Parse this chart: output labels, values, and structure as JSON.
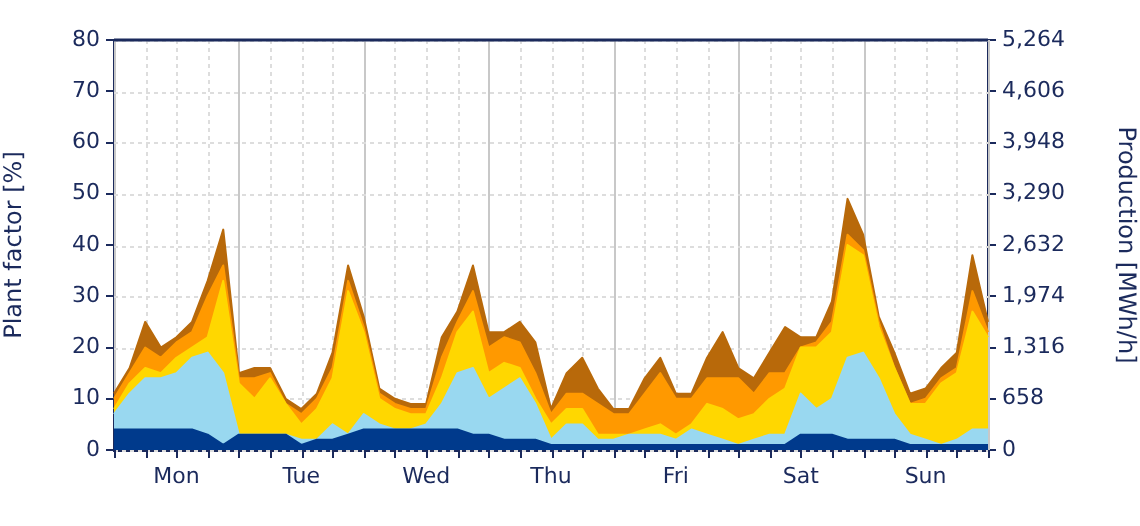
{
  "chart_data": {
    "type": "area",
    "stacked": true,
    "ylabel": "Plant factor [%]",
    "y2label": "Production [MWh/h]",
    "categories": [
      null,
      null,
      null,
      null,
      "Mon",
      null,
      null,
      null,
      null,
      null,
      null,
      null,
      "Tue",
      null,
      null,
      null,
      null,
      null,
      null,
      null,
      "Wed",
      null,
      null,
      null,
      null,
      null,
      null,
      null,
      "Thu",
      null,
      null,
      null,
      null,
      null,
      null,
      null,
      "Fri",
      null,
      null,
      null,
      null,
      null,
      null,
      null,
      "Sat",
      null,
      null,
      null,
      null,
      null,
      null,
      null,
      "Sun",
      null,
      null,
      null,
      null
    ],
    "series": [
      {
        "color": "#003a8c",
        "values": [
          4,
          4,
          4,
          4,
          4,
          4,
          3,
          1,
          3,
          3,
          3,
          3,
          1,
          2,
          2,
          3,
          4,
          4,
          4,
          4,
          4,
          4,
          4,
          3,
          3,
          2,
          2,
          2,
          1,
          1,
          1,
          1,
          1,
          1,
          1,
          1,
          1,
          1,
          1,
          1,
          1,
          1,
          1,
          1,
          3,
          3,
          3,
          2,
          2,
          2,
          2,
          1,
          1,
          1,
          1,
          1,
          1
        ]
      },
      {
        "color": "#99d8f0",
        "values": [
          3,
          7,
          10,
          10,
          11,
          14,
          16,
          14,
          0,
          0,
          0,
          0,
          1,
          0,
          3,
          0,
          3,
          1,
          0,
          0,
          1,
          5,
          11,
          13,
          7,
          10,
          12,
          7,
          1,
          4,
          4,
          1,
          1,
          2,
          2,
          2,
          1,
          3,
          2,
          1,
          0,
          1,
          2,
          2,
          8,
          5,
          7,
          16,
          17,
          12,
          5,
          2,
          1,
          0,
          1,
          3,
          3
        ]
      },
      {
        "color": "#ffd700",
        "values": [
          1,
          2,
          2,
          1,
          3,
          2,
          3,
          18,
          10,
          7,
          11,
          6,
          3,
          6,
          9,
          28,
          16,
          5,
          4,
          3,
          2,
          5,
          8,
          11,
          5,
          5,
          2,
          1,
          3,
          3,
          3,
          1,
          1,
          0,
          1,
          2,
          1,
          1,
          6,
          6,
          5,
          5,
          7,
          9,
          9,
          12,
          13,
          22,
          19,
          10,
          9,
          6,
          7,
          12,
          13,
          23,
          18
        ]
      },
      {
        "color": "#ff9900",
        "values": [
          2,
          2,
          4,
          3,
          3,
          3,
          8,
          3,
          1,
          4,
          1,
          0,
          2,
          2,
          2,
          2,
          1,
          1,
          1,
          1,
          1,
          4,
          2,
          4,
          5,
          5,
          5,
          5,
          2,
          3,
          3,
          6,
          4,
          4,
          7,
          10,
          7,
          5,
          5,
          6,
          8,
          4,
          5,
          3,
          0,
          1,
          2,
          2,
          1,
          1,
          0,
          0,
          1,
          1,
          1,
          4,
          1
        ]
      },
      {
        "color": "#b8690a",
        "values": [
          1,
          1,
          5,
          2,
          1,
          2,
          3,
          7,
          1,
          2,
          1,
          1,
          1,
          1,
          3,
          3,
          2,
          1,
          1,
          1,
          1,
          4,
          2,
          5,
          3,
          1,
          4,
          6,
          1,
          4,
          7,
          3,
          1,
          1,
          3,
          3,
          1,
          1,
          4,
          9,
          2,
          3,
          4,
          9,
          2,
          1,
          4,
          7,
          3,
          1,
          3,
          2,
          2,
          2,
          3,
          7,
          2
        ]
      }
    ],
    "ylim": [
      0,
      80
    ],
    "yticks": [
      0,
      10,
      20,
      30,
      40,
      50,
      60,
      70,
      80
    ],
    "y2lim": [
      0,
      5264
    ],
    "y2ticks": [
      0,
      658,
      {
        "value": 1316,
        "label": "1,316"
      },
      {
        "value": 1974,
        "label": "1,974"
      },
      {
        "value": 2632,
        "label": "2,632"
      },
      {
        "value": 3290,
        "label": "3,290"
      },
      {
        "value": 3948,
        "label": "3,948"
      },
      {
        "value": 4606,
        "label": "4,606"
      },
      {
        "value": 5264,
        "label": "5,264"
      }
    ],
    "grid": true,
    "legend": false
  }
}
